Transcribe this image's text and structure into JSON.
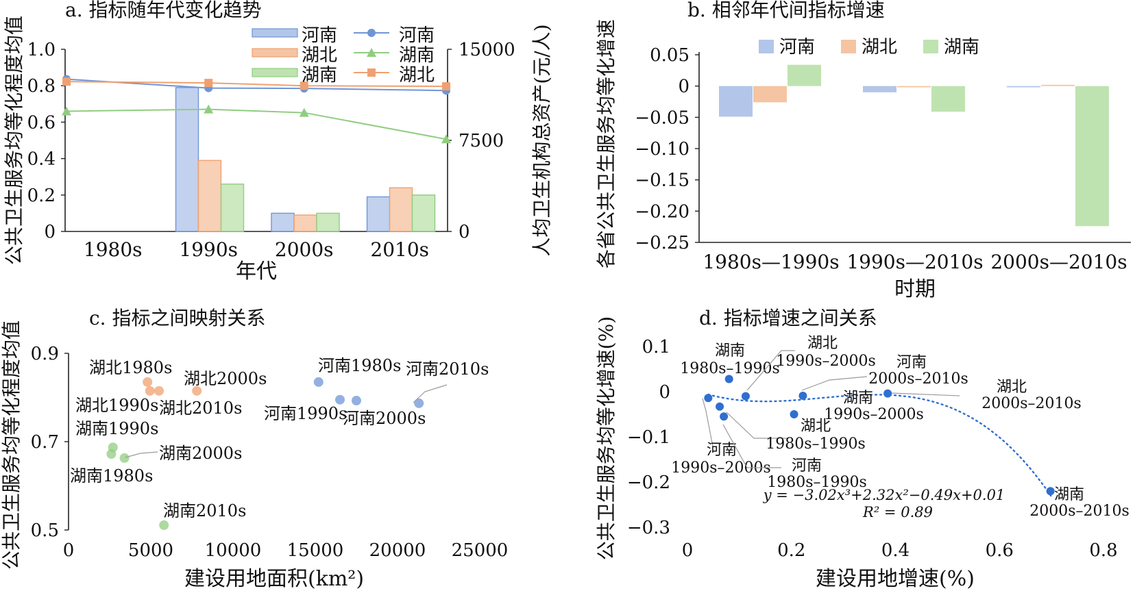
{
  "colors": {
    "henan": "#6f95d6",
    "hubei": "#f0a070",
    "hunan": "#90cd80",
    "henan_bar": "#b3c6ea",
    "hubei_bar": "#f5c4a2",
    "hunan_bar": "#bfe3b0",
    "fit": "#2f6fd0"
  },
  "chart_data": [
    {
      "id": "a",
      "type": "bar",
      "title": "a. 指标随年代变化趋势",
      "xlabel": "年代",
      "ylabel": "公共卫生服务均等化程度均值",
      "y2label": "人均卫生机构总资产(元/人)",
      "categories": [
        "1980s",
        "1990s",
        "2000s",
        "2010s"
      ],
      "ylim": [
        0,
        1.0
      ],
      "yticks": [
        "0",
        "0.2",
        "0.4",
        "0.6",
        "0.8",
        "1.0"
      ],
      "y2lim": [
        0,
        15000
      ],
      "y2ticks": [
        "0",
        "7500",
        "15000"
      ],
      "bar_series": [
        {
          "name": "河南",
          "key": "henan",
          "values": [
            null,
            0.79,
            0.1,
            0.19
          ]
        },
        {
          "name": "湖北",
          "key": "hubei",
          "values": [
            null,
            0.39,
            0.09,
            0.24
          ]
        },
        {
          "name": "湖南",
          "key": "hunan",
          "values": [
            null,
            0.26,
            0.1,
            0.2
          ]
        }
      ],
      "line_series": [
        {
          "name": "河南",
          "key": "henan",
          "marker": "circle",
          "values": [
            12540,
            11810,
            11780,
            11600
          ]
        },
        {
          "name": "湖南",
          "key": "hunan",
          "marker": "triangle",
          "values": [
            9900,
            10060,
            9780,
            7600
          ]
        },
        {
          "name": "湖北",
          "key": "hubei",
          "marker": "square",
          "values": [
            12340,
            12230,
            12000,
            11950
          ]
        }
      ],
      "legend_position": "top"
    },
    {
      "id": "b",
      "type": "bar",
      "title": "b. 相邻年代间指标增速",
      "xlabel": "时期",
      "ylabel": "各省公共卫生服务均等化增速",
      "categories": [
        "1980s—1990s",
        "1990s—2010s",
        "2000s—2010s"
      ],
      "ylim": [
        -0.25,
        0.05
      ],
      "yticks": [
        "−0.25",
        "−0.20",
        "−0.15",
        "−0.10",
        "−0.05",
        "0",
        "0.05"
      ],
      "series": [
        {
          "name": "河南",
          "key": "henan",
          "values": [
            -0.049,
            -0.01,
            -0.002
          ]
        },
        {
          "name": "湖北",
          "key": "hubei",
          "values": [
            -0.026,
            -0.002,
            0.002
          ]
        },
        {
          "name": "湖南",
          "key": "hunan",
          "values": [
            0.034,
            -0.041,
            -0.224
          ]
        }
      ],
      "legend_position": "top"
    },
    {
      "id": "c",
      "type": "scatter",
      "title": "c. 指标之间映射关系",
      "xlabel": "建设用地面积(km²)",
      "ylabel": "公共卫生服务均等化程度均值",
      "xlim": [
        0,
        25000
      ],
      "xticks": [
        "0",
        "5000",
        "10000",
        "15000",
        "20000",
        "25000"
      ],
      "ylim": [
        0.5,
        0.9
      ],
      "yticks": [
        "0.5",
        "0.7",
        "0.9"
      ],
      "points": [
        {
          "label": "湖北1980s",
          "key": "hubei",
          "x": 4800,
          "y": 0.835
        },
        {
          "label": "湖北1990s",
          "key": "hubei",
          "x": 4950,
          "y": 0.815
        },
        {
          "label": "湖北2010s",
          "key": "hubei",
          "x": 5500,
          "y": 0.815
        },
        {
          "label": "湖北2000s",
          "key": "hubei",
          "x": 7800,
          "y": 0.815
        },
        {
          "label": "河南1980s",
          "key": "henan",
          "x": 15200,
          "y": 0.835
        },
        {
          "label": "河南1990s",
          "key": "henan",
          "x": 16500,
          "y": 0.795
        },
        {
          "label": "河南2000s",
          "key": "henan",
          "x": 17500,
          "y": 0.793
        },
        {
          "label": "河南2010s",
          "key": "henan",
          "x": 21300,
          "y": 0.787
        },
        {
          "label": "湖南1990s",
          "key": "hunan",
          "x": 2700,
          "y": 0.687
        },
        {
          "label": "湖南1980s",
          "key": "hunan",
          "x": 2600,
          "y": 0.672
        },
        {
          "label": "湖南2000s",
          "key": "hunan",
          "x": 3400,
          "y": 0.663
        },
        {
          "label": "湖南2010s",
          "key": "hunan",
          "x": 5800,
          "y": 0.511
        }
      ]
    },
    {
      "id": "d",
      "type": "scatter",
      "title": "d. 指标增速之间关系",
      "xlabel": "建设用地增速(%)",
      "ylabel": "公共卫生服务均等化增速(%)",
      "xlim": [
        0,
        0.8
      ],
      "xticks": [
        "0",
        "0.2",
        "0.4",
        "0.6",
        "0.8"
      ],
      "ylim": [
        -0.3,
        0.1
      ],
      "yticks": [
        "−0.3",
        "−0.2",
        "−0.1",
        "0",
        "0.1"
      ],
      "points": [
        {
          "label": "湖南 1980s–1990s",
          "x": 0.08,
          "y": 0.028
        },
        {
          "label": "湖北 1990s–2000s",
          "x": 0.112,
          "y": -0.01
        },
        {
          "label": "河南 2000s–2010s",
          "x": 0.222,
          "y": -0.009
        },
        {
          "label": "湖北 2000s–2010s",
          "x": 0.385,
          "y": -0.004
        },
        {
          "label": "湖南 1990s–2000s",
          "x": 0.205,
          "y": -0.05
        },
        {
          "label": "湖北 1980s–1990s",
          "x": 0.07,
          "y": -0.055
        },
        {
          "label": "河南 1990s–2000s",
          "x": 0.04,
          "y": -0.014
        },
        {
          "label": "河南 1980s–1990s",
          "x": 0.062,
          "y": -0.033
        },
        {
          "label": "湖南 2000s–2010s",
          "x": 0.698,
          "y": -0.22
        }
      ],
      "fit": {
        "a3": -3.02,
        "a2": 2.32,
        "a1": -0.49,
        "a0": 0.01
      },
      "equation": "y = −3.02x³+2.32x²−0.49x+0.01",
      "r2": "R² = 0.89"
    }
  ]
}
